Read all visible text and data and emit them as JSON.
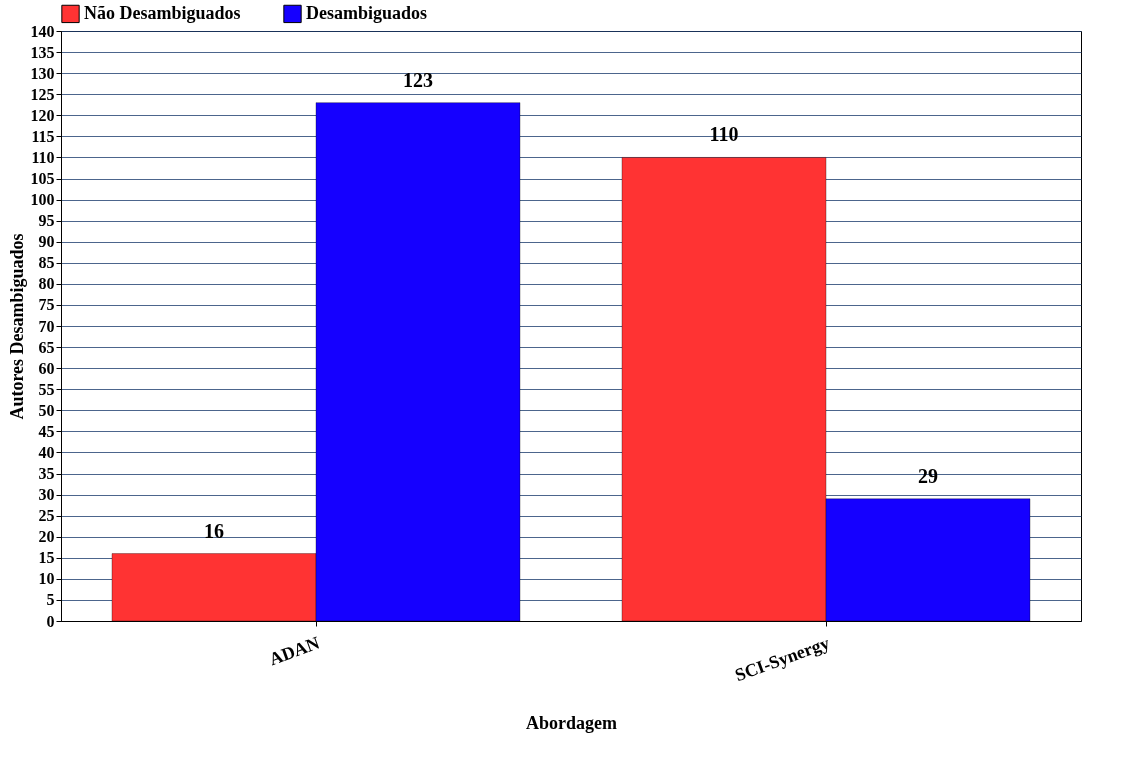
{
  "chart_data": {
    "type": "bar",
    "xlabel": "Abordagem",
    "ylabel": "Autores Desambiguados",
    "categories": [
      "ADAN",
      "SCI-Synergy"
    ],
    "series": [
      {
        "name": "Não Desambiguados",
        "color": "#ff3333",
        "values": [
          16,
          110
        ]
      },
      {
        "name": "Desambiguados",
        "color": "#1500ff",
        "values": [
          123,
          29
        ]
      }
    ],
    "ylim": [
      0,
      140
    ],
    "yticks": [
      0,
      5,
      10,
      15,
      20,
      25,
      30,
      35,
      40,
      45,
      50,
      55,
      60,
      65,
      70,
      75,
      80,
      85,
      90,
      95,
      100,
      105,
      110,
      115,
      120,
      125,
      130,
      135,
      140
    ],
    "grid": "y",
    "legend": "top left",
    "data_labels": true
  }
}
